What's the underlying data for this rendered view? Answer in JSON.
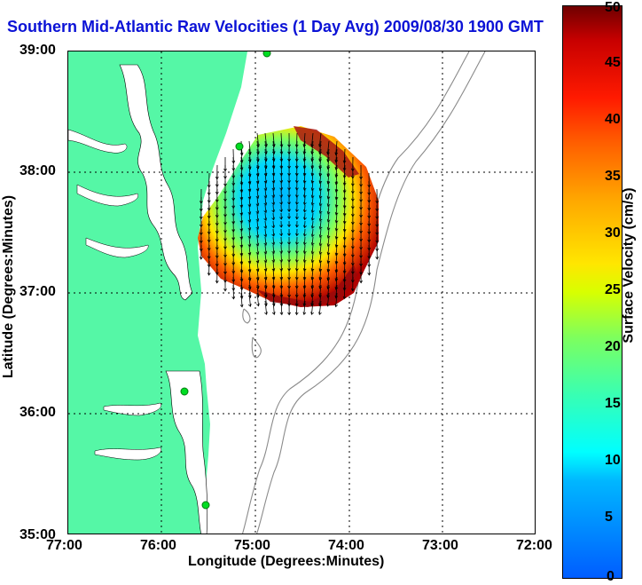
{
  "title": "Southern Mid-Atlantic Raw Velocities (1 Day Avg) 2009/08/30 1900 GMT",
  "map": {
    "xlabel": "Longitude (Degrees:Minutes)",
    "ylabel": "Latitude (Degrees:Minutes)",
    "x_ticks": [
      "77:00",
      "76:00",
      "75:00",
      "74:00",
      "73:00",
      "72:00"
    ],
    "y_ticks": [
      "39:00",
      "38:00",
      "37:00",
      "36:00",
      "35:00"
    ],
    "land_color": "#55f7a6",
    "vector_color": "#000000",
    "grid": "dotted"
  },
  "colorbar": {
    "label": "Surface Velocity (cm/s)",
    "ticks": [
      "50",
      "45",
      "40",
      "35",
      "30",
      "25",
      "20",
      "15",
      "10",
      "5",
      "0"
    ],
    "range": [
      0,
      50
    ]
  }
}
